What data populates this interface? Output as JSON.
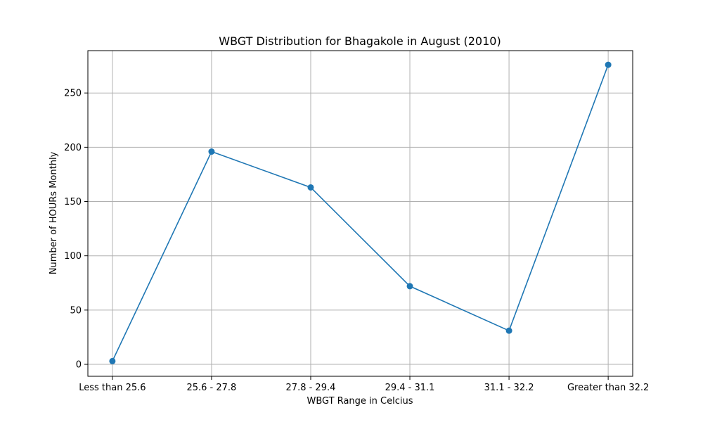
{
  "chart_data": {
    "type": "line",
    "title": "WBGT Distribution for Bhagakole in August (2010)",
    "xlabel": "WBGT Range in Celcius",
    "ylabel": "Number of HOURs Monthly",
    "categories": [
      "Less than 25.6",
      "25.6 - 27.8",
      "27.8 - 29.4",
      "29.4 - 31.1",
      "31.1 - 32.2",
      "Greater than 32.2"
    ],
    "series": [
      {
        "values": [
          3,
          196,
          163,
          72,
          31,
          276
        ]
      }
    ],
    "ylim": [
      -11,
      289
    ],
    "yticks": [
      0,
      50,
      100,
      150,
      200,
      250
    ],
    "grid": true,
    "legend": false,
    "colors": {
      "line": "#1f77b4",
      "grid": "#b0b0b0"
    }
  }
}
